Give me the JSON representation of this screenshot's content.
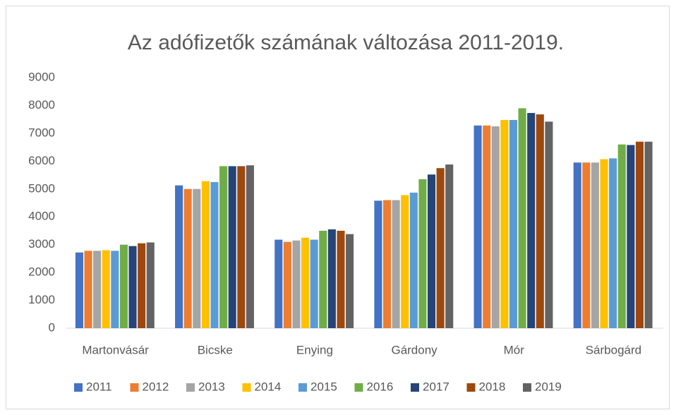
{
  "chart_data": {
    "type": "bar",
    "title": "Az adófizetők számának változása 2011-2019.",
    "categories": [
      "Martonvásár",
      "Bicske",
      "Enying",
      "Gárdony",
      "Mór",
      "Sárbogárd"
    ],
    "series": [
      {
        "name": "2011",
        "color": "#4472c4",
        "values": [
          2720,
          5130,
          3180,
          4580,
          7280,
          5950
        ]
      },
      {
        "name": "2012",
        "color": "#ed7d31",
        "values": [
          2780,
          5000,
          3100,
          4600,
          7280,
          5950
        ]
      },
      {
        "name": "2013",
        "color": "#a5a5a5",
        "values": [
          2780,
          5000,
          3150,
          4600,
          7250,
          5950
        ]
      },
      {
        "name": "2014",
        "color": "#ffc000",
        "values": [
          2800,
          5280,
          3250,
          4780,
          7480,
          6070
        ]
      },
      {
        "name": "2015",
        "color": "#5b9bd5",
        "values": [
          2780,
          5250,
          3180,
          4870,
          7480,
          6100
        ]
      },
      {
        "name": "2016",
        "color": "#70ad47",
        "values": [
          3000,
          5820,
          3500,
          5350,
          7900,
          6600
        ]
      },
      {
        "name": "2017",
        "color": "#264478",
        "values": [
          2950,
          5820,
          3550,
          5520,
          7730,
          6580
        ]
      },
      {
        "name": "2018",
        "color": "#9e480e",
        "values": [
          3050,
          5820,
          3500,
          5750,
          7680,
          6700
        ]
      },
      {
        "name": "2019",
        "color": "#636363",
        "values": [
          3080,
          5850,
          3380,
          5880,
          7420,
          6700
        ]
      }
    ],
    "ylim": [
      0,
      9000
    ],
    "yticks": [
      0,
      1000,
      2000,
      3000,
      4000,
      5000,
      6000,
      7000,
      8000,
      9000
    ],
    "grid": false,
    "legend": "bottom"
  }
}
